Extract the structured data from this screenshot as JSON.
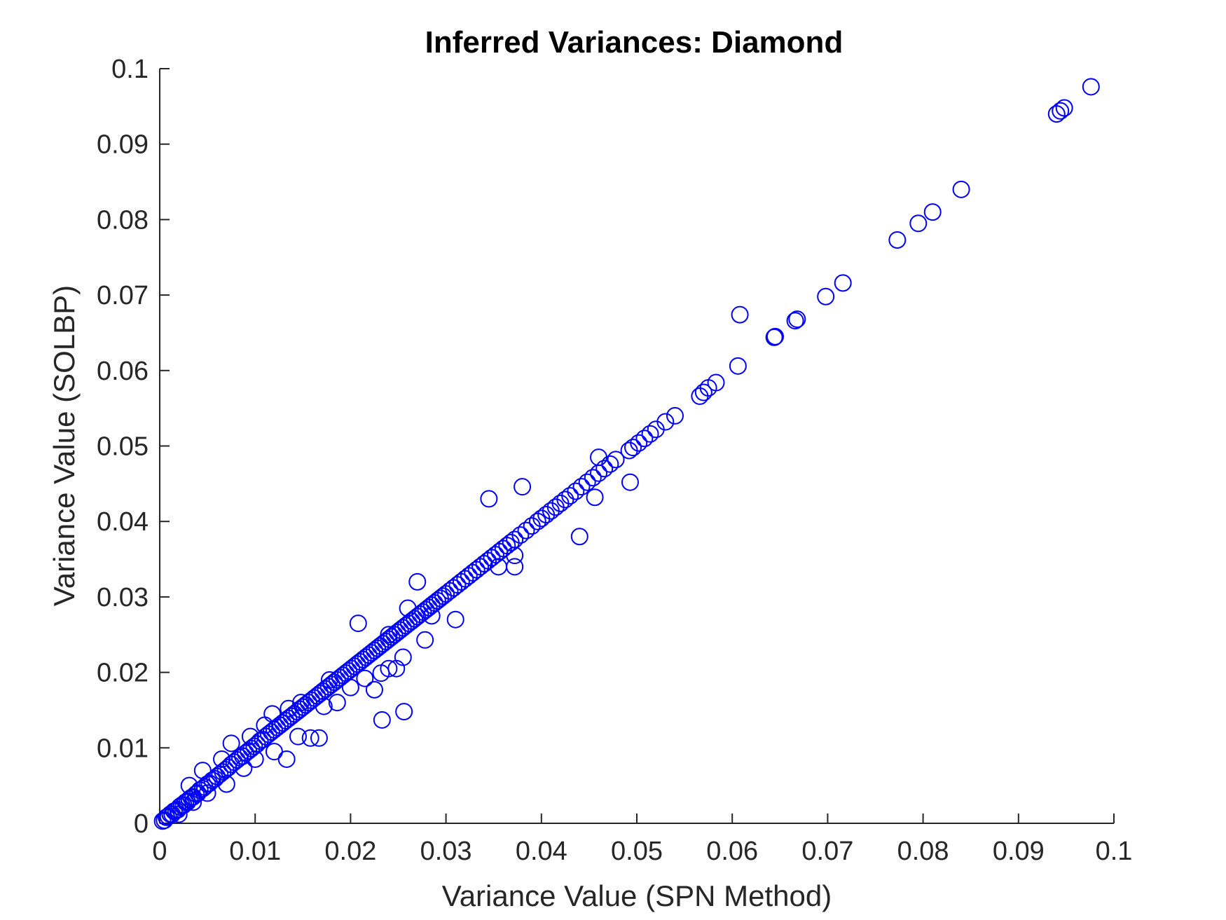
{
  "chart_data": {
    "type": "scatter",
    "title": "Inferred Variances: Diamond",
    "xlabel": "Variance Value (SPN Method)",
    "ylabel": "Variance Value (SOLBP)",
    "xlim": [
      0,
      0.1
    ],
    "ylim": [
      0,
      0.1
    ],
    "xticks": [
      0,
      0.01,
      0.02,
      0.03,
      0.04,
      0.05,
      0.06,
      0.07,
      0.08,
      0.09,
      0.1
    ],
    "yticks": [
      0,
      0.01,
      0.02,
      0.03,
      0.04,
      0.05,
      0.06,
      0.07,
      0.08,
      0.09,
      0.1
    ],
    "xtick_labels": [
      "0",
      "0.01",
      "0.02",
      "0.03",
      "0.04",
      "0.05",
      "0.06",
      "0.07",
      "0.08",
      "0.09",
      "0.1"
    ],
    "ytick_labels": [
      "0",
      "0.01",
      "0.02",
      "0.03",
      "0.04",
      "0.05",
      "0.06",
      "0.07",
      "0.08",
      "0.09",
      "0.1"
    ],
    "grid": false,
    "marker": "open-circle",
    "marker_color": "#0000ff",
    "series": [
      {
        "points": [
          [
            0.0003,
            0.0003
          ],
          [
            0.0005,
            0.0004
          ],
          [
            0.0007,
            0.0008
          ],
          [
            0.0009,
            0.0009
          ],
          [
            0.0011,
            0.0012
          ],
          [
            0.0013,
            0.0012
          ],
          [
            0.0015,
            0.0016
          ],
          [
            0.0017,
            0.0017
          ],
          [
            0.0019,
            0.0018
          ],
          [
            0.0021,
            0.0022
          ],
          [
            0.0023,
            0.0024
          ],
          [
            0.0025,
            0.0024
          ],
          [
            0.0027,
            0.0028
          ],
          [
            0.0029,
            0.0028
          ],
          [
            0.0031,
            0.0032
          ],
          [
            0.0033,
            0.0034
          ],
          [
            0.0035,
            0.0035
          ],
          [
            0.0038,
            0.0039
          ],
          [
            0.004,
            0.004
          ],
          [
            0.0042,
            0.0044
          ],
          [
            0.0045,
            0.0046
          ],
          [
            0.0047,
            0.0048
          ],
          [
            0.005,
            0.0052
          ],
          [
            0.0052,
            0.0053
          ],
          [
            0.0055,
            0.0057
          ],
          [
            0.0058,
            0.0059
          ],
          [
            0.006,
            0.0062
          ],
          [
            0.0063,
            0.0065
          ],
          [
            0.0066,
            0.0068
          ],
          [
            0.0069,
            0.0071
          ],
          [
            0.0072,
            0.0074
          ],
          [
            0.0075,
            0.0078
          ],
          [
            0.0078,
            0.0081
          ],
          [
            0.0081,
            0.0084
          ],
          [
            0.0084,
            0.0087
          ],
          [
            0.0087,
            0.0089
          ],
          [
            0.009,
            0.0093
          ],
          [
            0.0093,
            0.0096
          ],
          [
            0.0096,
            0.0099
          ],
          [
            0.0099,
            0.0102
          ],
          [
            0.0102,
            0.0105
          ],
          [
            0.0105,
            0.0109
          ],
          [
            0.0108,
            0.0111
          ],
          [
            0.0111,
            0.0115
          ],
          [
            0.0114,
            0.0118
          ],
          [
            0.0117,
            0.0121
          ],
          [
            0.012,
            0.0124
          ],
          [
            0.0123,
            0.0127
          ],
          [
            0.0126,
            0.013
          ],
          [
            0.0129,
            0.0133
          ],
          [
            0.0132,
            0.0136
          ],
          [
            0.0135,
            0.0139
          ],
          [
            0.0138,
            0.0142
          ],
          [
            0.0141,
            0.0145
          ],
          [
            0.0144,
            0.0148
          ],
          [
            0.0147,
            0.0151
          ],
          [
            0.015,
            0.0154
          ],
          [
            0.0153,
            0.0157
          ],
          [
            0.0156,
            0.016
          ],
          [
            0.0159,
            0.0163
          ],
          [
            0.0162,
            0.0166
          ],
          [
            0.0165,
            0.0169
          ],
          [
            0.0168,
            0.0172
          ],
          [
            0.0171,
            0.0175
          ],
          [
            0.0174,
            0.0178
          ],
          [
            0.0177,
            0.0181
          ],
          [
            0.018,
            0.0184
          ],
          [
            0.0183,
            0.0187
          ],
          [
            0.0186,
            0.019
          ],
          [
            0.0189,
            0.0193
          ],
          [
            0.0192,
            0.0196
          ],
          [
            0.0195,
            0.0199
          ],
          [
            0.0198,
            0.0202
          ],
          [
            0.0201,
            0.0205
          ],
          [
            0.0204,
            0.0208
          ],
          [
            0.0207,
            0.0211
          ],
          [
            0.021,
            0.0214
          ],
          [
            0.0213,
            0.0217
          ],
          [
            0.0216,
            0.022
          ],
          [
            0.0219,
            0.0223
          ],
          [
            0.0222,
            0.0226
          ],
          [
            0.0225,
            0.0229
          ],
          [
            0.0228,
            0.0232
          ],
          [
            0.0231,
            0.0235
          ],
          [
            0.0234,
            0.0238
          ],
          [
            0.0237,
            0.0241
          ],
          [
            0.024,
            0.0244
          ],
          [
            0.0243,
            0.0247
          ],
          [
            0.0246,
            0.025
          ],
          [
            0.0249,
            0.0253
          ],
          [
            0.0252,
            0.0256
          ],
          [
            0.0255,
            0.0259
          ],
          [
            0.0258,
            0.0262
          ],
          [
            0.0261,
            0.0265
          ],
          [
            0.0264,
            0.0268
          ],
          [
            0.0267,
            0.0271
          ],
          [
            0.027,
            0.0274
          ],
          [
            0.0273,
            0.0277
          ],
          [
            0.0276,
            0.028
          ],
          [
            0.0279,
            0.0283
          ],
          [
            0.0282,
            0.0286
          ],
          [
            0.0285,
            0.0289
          ],
          [
            0.0288,
            0.0292
          ],
          [
            0.0291,
            0.0295
          ],
          [
            0.0294,
            0.0298
          ],
          [
            0.0297,
            0.0301
          ],
          [
            0.03,
            0.0304
          ],
          [
            0.0304,
            0.0308
          ],
          [
            0.0308,
            0.0312
          ],
          [
            0.0312,
            0.0316
          ],
          [
            0.0316,
            0.032
          ],
          [
            0.032,
            0.0324
          ],
          [
            0.0324,
            0.0328
          ],
          [
            0.0328,
            0.0332
          ],
          [
            0.0332,
            0.0336
          ],
          [
            0.0336,
            0.034
          ],
          [
            0.034,
            0.0344
          ],
          [
            0.0344,
            0.0348
          ],
          [
            0.0348,
            0.0352
          ],
          [
            0.0352,
            0.0356
          ],
          [
            0.0356,
            0.036
          ],
          [
            0.036,
            0.0364
          ],
          [
            0.0364,
            0.0368
          ],
          [
            0.0368,
            0.0372
          ],
          [
            0.0372,
            0.0376
          ],
          [
            0.0378,
            0.0382
          ],
          [
            0.0384,
            0.0388
          ],
          [
            0.039,
            0.0394
          ],
          [
            0.0396,
            0.04
          ],
          [
            0.04,
            0.0404
          ],
          [
            0.0405,
            0.0409
          ],
          [
            0.041,
            0.0414
          ],
          [
            0.0415,
            0.0419
          ],
          [
            0.042,
            0.0424
          ],
          [
            0.0425,
            0.0429
          ],
          [
            0.043,
            0.0434
          ],
          [
            0.0436,
            0.044
          ],
          [
            0.0442,
            0.0446
          ],
          [
            0.0448,
            0.0452
          ],
          [
            0.0454,
            0.0458
          ],
          [
            0.046,
            0.0464
          ],
          [
            0.0466,
            0.047
          ],
          [
            0.0472,
            0.0476
          ],
          [
            0.0478,
            0.0482
          ],
          [
            0.0492,
            0.0494
          ],
          [
            0.0496,
            0.0498
          ],
          [
            0.0502,
            0.0504
          ],
          [
            0.0508,
            0.051
          ],
          [
            0.0514,
            0.0516
          ],
          [
            0.052,
            0.0522
          ],
          [
            0.053,
            0.0532
          ],
          [
            0.054,
            0.054
          ],
          [
            0.0566,
            0.0566
          ],
          [
            0.057,
            0.0571
          ],
          [
            0.0575,
            0.0577
          ],
          [
            0.0583,
            0.0584
          ],
          [
            0.0606,
            0.0606
          ],
          [
            0.0644,
            0.0644
          ],
          [
            0.0645,
            0.0645
          ],
          [
            0.0666,
            0.0666
          ],
          [
            0.0668,
            0.0668
          ],
          [
            0.0698,
            0.0698
          ],
          [
            0.0716,
            0.0716
          ],
          [
            0.0773,
            0.0773
          ],
          [
            0.0795,
            0.0795
          ],
          [
            0.081,
            0.081
          ],
          [
            0.084,
            0.084
          ],
          [
            0.094,
            0.094
          ],
          [
            0.0944,
            0.0944
          ],
          [
            0.0948,
            0.0948
          ],
          [
            0.0976,
            0.0976
          ],
          [
            0.0031,
            0.005
          ],
          [
            0.0045,
            0.007
          ],
          [
            0.0065,
            0.0085
          ],
          [
            0.0075,
            0.0106
          ],
          [
            0.0095,
            0.0115
          ],
          [
            0.011,
            0.013
          ],
          [
            0.0118,
            0.0145
          ],
          [
            0.0135,
            0.0152
          ],
          [
            0.0148,
            0.016
          ],
          [
            0.0178,
            0.019
          ],
          [
            0.0208,
            0.0265
          ],
          [
            0.027,
            0.032
          ],
          [
            0.026,
            0.0285
          ],
          [
            0.0345,
            0.043
          ],
          [
            0.038,
            0.0446
          ],
          [
            0.046,
            0.0485
          ],
          [
            0.0608,
            0.0674
          ],
          [
            0.024,
            0.025
          ],
          [
            0.002,
            0.0012
          ],
          [
            0.0035,
            0.0028
          ],
          [
            0.005,
            0.004
          ],
          [
            0.007,
            0.0052
          ],
          [
            0.0088,
            0.0073
          ],
          [
            0.01,
            0.0085
          ],
          [
            0.012,
            0.0095
          ],
          [
            0.0133,
            0.0085
          ],
          [
            0.0145,
            0.0115
          ],
          [
            0.0158,
            0.0113
          ],
          [
            0.0167,
            0.0113
          ],
          [
            0.0172,
            0.0155
          ],
          [
            0.0186,
            0.016
          ],
          [
            0.02,
            0.018
          ],
          [
            0.0215,
            0.0192
          ],
          [
            0.0225,
            0.0177
          ],
          [
            0.0232,
            0.0199
          ],
          [
            0.024,
            0.0205
          ],
          [
            0.0248,
            0.0205
          ],
          [
            0.0255,
            0.022
          ],
          [
            0.0233,
            0.0137
          ],
          [
            0.0256,
            0.0148
          ],
          [
            0.0278,
            0.0243
          ],
          [
            0.0285,
            0.0275
          ],
          [
            0.031,
            0.027
          ],
          [
            0.0355,
            0.034
          ],
          [
            0.0372,
            0.034
          ],
          [
            0.0372,
            0.0355
          ],
          [
            0.044,
            0.038
          ],
          [
            0.0456,
            0.0432
          ],
          [
            0.0493,
            0.0452
          ]
        ]
      }
    ]
  }
}
